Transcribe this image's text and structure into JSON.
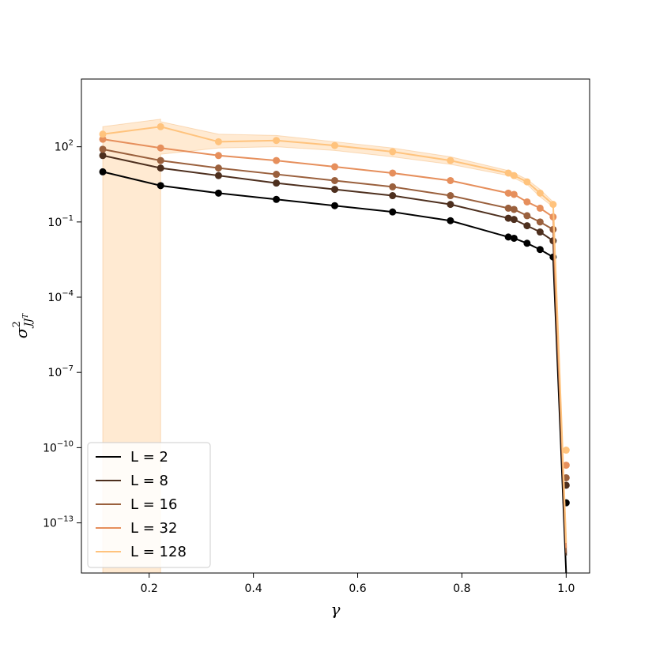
{
  "chart_data": {
    "type": "line",
    "title": "",
    "xlabel": "γ",
    "ylabel": "σ²_JJᵀ",
    "xlim": [
      0.07,
      1.045
    ],
    "ylim_log10": [
      -15.0,
      4.7
    ],
    "yscale": "log",
    "grid": false,
    "legend_placement": "lower-left",
    "x_ticks": [
      0.2,
      0.4,
      0.6,
      0.8,
      1.0
    ],
    "x_tick_labels": [
      "0.2",
      "0.4",
      "0.6",
      "0.8",
      "1.0"
    ],
    "y_ticks_log10": [
      2,
      -1,
      -4,
      -7,
      -10,
      -13
    ],
    "y_tick_labels": [
      {
        "base": "10",
        "exp": "2"
      },
      {
        "base": "10",
        "exp": "−1"
      },
      {
        "base": "10",
        "exp": "−4"
      },
      {
        "base": "10",
        "exp": "−7"
      },
      {
        "base": "10",
        "exp": "−10"
      },
      {
        "base": "10",
        "exp": "−13"
      }
    ],
    "x": [
      0.111,
      0.222,
      0.333,
      0.444,
      0.556,
      0.667,
      0.778,
      0.889,
      0.9,
      0.925,
      0.95,
      0.975,
      1.0
    ],
    "series": [
      {
        "name": "L = 2",
        "color": "#000000",
        "log10_values": [
          1.0,
          0.45,
          0.15,
          -0.1,
          -0.35,
          -0.6,
          -0.95,
          -1.6,
          -1.65,
          -1.85,
          -2.1,
          -2.4,
          -12.2
        ],
        "line_end_log10": -15.0
      },
      {
        "name": "L = 8",
        "color": "#4d2f1e",
        "log10_values": [
          1.65,
          1.15,
          0.85,
          0.55,
          0.3,
          0.05,
          -0.3,
          -0.85,
          -0.9,
          -1.15,
          -1.4,
          -1.75,
          -11.5
        ],
        "line_end_log10": -14.3
      },
      {
        "name": "L = 16",
        "color": "#9a603d",
        "log10_values": [
          1.9,
          1.45,
          1.15,
          0.9,
          0.65,
          0.4,
          0.05,
          -0.45,
          -0.5,
          -0.75,
          -1.0,
          -1.3,
          -11.2
        ],
        "line_end_log10": -14.2
      },
      {
        "name": "L = 32",
        "color": "#e68f5c",
        "log10_values": [
          2.3,
          1.95,
          1.65,
          1.45,
          1.2,
          0.95,
          0.65,
          0.15,
          0.1,
          -0.2,
          -0.45,
          -0.8,
          -10.7
        ],
        "line_end_log10": -14.0
      },
      {
        "name": "L = 128",
        "color": "#ffc37d",
        "log10_values": [
          2.5,
          2.8,
          2.2,
          2.25,
          2.05,
          1.8,
          1.45,
          0.95,
          0.85,
          0.6,
          0.15,
          -0.3,
          -10.1
        ],
        "line_end_log10": -13.8
      }
    ],
    "confidence_band_L128": {
      "x": [
        0.111,
        0.222,
        0.222,
        0.333,
        0.444,
        0.556,
        0.667,
        0.778,
        0.889,
        0.9,
        0.925,
        0.95,
        0.975
      ],
      "upper_log10": [
        2.8,
        3.1,
        3.0,
        2.5,
        2.45,
        2.2,
        1.95,
        1.6,
        1.05,
        0.95,
        0.7,
        0.3,
        -0.2
      ],
      "lower_log10": [
        -15.0,
        -15.0,
        1.7,
        1.95,
        2.0,
        1.85,
        1.6,
        1.3,
        0.85,
        0.75,
        0.5,
        0.0,
        -0.4
      ]
    }
  }
}
